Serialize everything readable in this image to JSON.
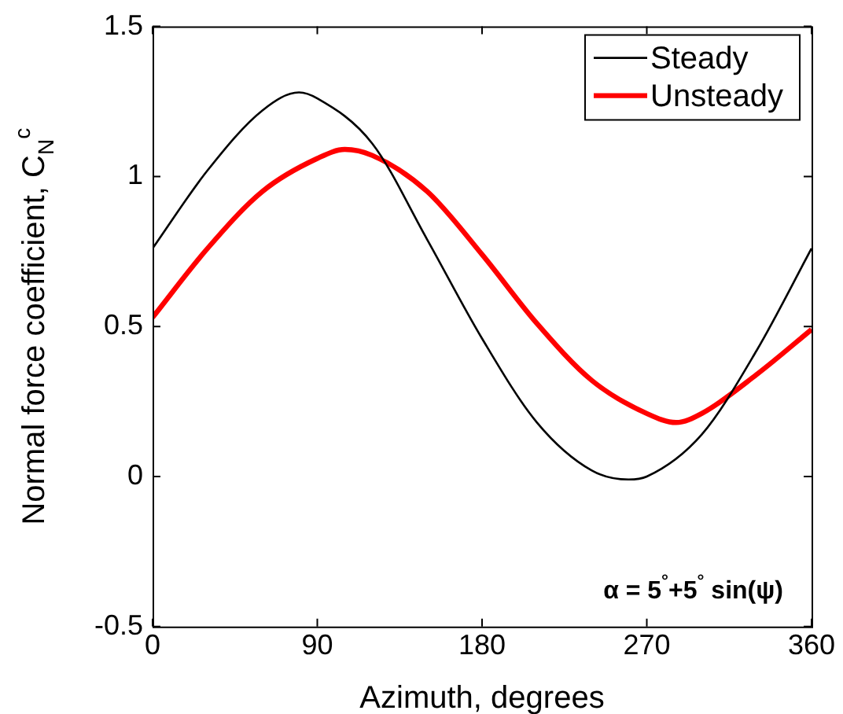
{
  "chart_data": {
    "type": "line",
    "xlabel": "Azimuth, degrees",
    "ylabel": "Normal force coefficient, C$_{N}$$^{c}$",
    "xlim": [
      0,
      360
    ],
    "xticks": [
      0,
      90,
      180,
      270,
      360
    ],
    "ylim": [
      -0.5,
      1.5
    ],
    "yticks": [
      -0.5,
      0,
      0.5,
      1,
      1.5
    ],
    "grid": false,
    "legend": "top right",
    "marker": "none",
    "line_style": "solid",
    "annotations": [
      "α = 5$^{°}$+5$^{°}$ sin(ψ)"
    ],
    "series": [
      {
        "name": "Steady",
        "color": "#000000",
        "x": [
          0,
          30,
          60,
          80,
          90,
          120,
          150,
          180,
          210,
          240,
          260,
          270,
          300,
          330,
          360
        ],
        "values": [
          0.76,
          1.02,
          1.22,
          1.28,
          1.26,
          1.11,
          0.79,
          0.46,
          0.18,
          0.02,
          -0.01,
          0.0,
          0.14,
          0.42,
          0.76
        ]
      },
      {
        "name": "Unsteady",
        "color": "#ff0000",
        "x": [
          0,
          30,
          60,
          90,
          105,
          120,
          150,
          180,
          210,
          240,
          270,
          286,
          300,
          330,
          360
        ],
        "values": [
          0.53,
          0.76,
          0.95,
          1.06,
          1.09,
          1.07,
          0.95,
          0.74,
          0.51,
          0.32,
          0.21,
          0.18,
          0.21,
          0.34,
          0.49
        ]
      }
    ]
  }
}
